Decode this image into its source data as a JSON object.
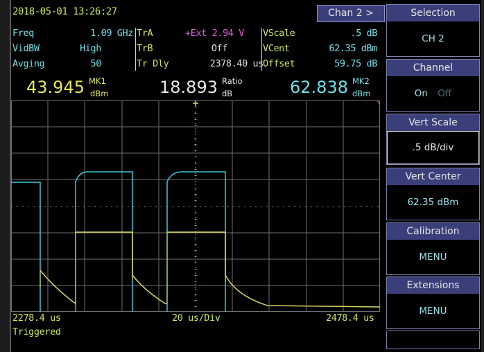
{
  "header": {
    "datetime": "2018-05-01   13:26:27",
    "chan_tab": "Chan 2 >"
  },
  "params": {
    "freq_label": "Freq",
    "freq_value": "1.09 GHz",
    "vidbw_label": "VidBW",
    "vidbw_value": "High",
    "avging_label": "Avging",
    "avging_value": "50",
    "tra_label": "TrA",
    "tra_value": "+Ext 2.94 V",
    "trb_label": "TrB",
    "trb_value": "Off",
    "trdly_label": "Tr Dly",
    "trdly_value": "2378.40 us",
    "vscale_label": "VScale",
    "vscale_value": ".5 dB",
    "vcent_label": "VCent",
    "vcent_value": "62.35 dBm",
    "offset_label": "Offset",
    "offset_value": "59.75 dB"
  },
  "markers": {
    "mk1_value": "43.945",
    "mk1_label": "MK1",
    "mk1_unit": "dBm",
    "ratio_value": "18.893",
    "ratio_label": "Ratio",
    "ratio_unit": "dB",
    "mk2_value": "62.838",
    "mk2_label": "MK2",
    "mk2_unit": "dBm"
  },
  "footer": {
    "time_left": "2278.4 us",
    "time_div": "20 us/Div",
    "time_right": "2478.4 us",
    "status": "Triggered"
  },
  "menu": {
    "items": [
      {
        "title": "Selection",
        "value": "CH 2"
      },
      {
        "title": "Channel",
        "value_on": "On",
        "value_off": "Off"
      },
      {
        "title": "Vert Scale",
        "value": ".5 dB/div"
      },
      {
        "title": "Vert Center",
        "value": "62.35 dBm"
      },
      {
        "title": "Calibration",
        "value": "MENU"
      },
      {
        "title": "Extensions",
        "value": "MENU"
      }
    ]
  },
  "colors": {
    "trace_cyan": "#3ec8d8",
    "trace_yellow": "#d8d860",
    "grid": "#7a7a7a",
    "button_bg": "#3a3f7a"
  }
}
